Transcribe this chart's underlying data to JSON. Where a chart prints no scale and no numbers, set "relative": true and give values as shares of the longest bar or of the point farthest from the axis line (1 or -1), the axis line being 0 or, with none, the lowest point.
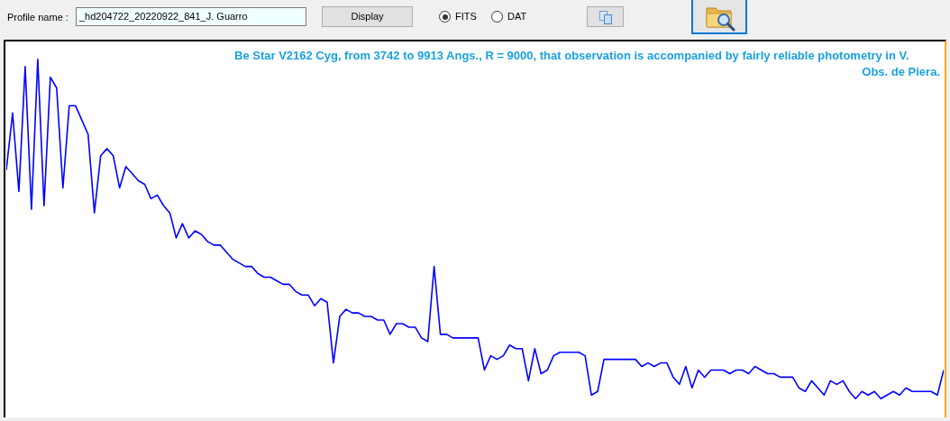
{
  "chart_data": {
    "type": "line",
    "title": "Be Star V2162 Cyg,  from 3742 to 9913 Angs., R = 9000, that observation is accompanied by fairly reliable photometry in V.",
    "annotations": [
      "Obs. de Piera.",
      "Profile name :",
      "_hd204722_20220922_841_J. Guarro",
      "Display",
      "FITS",
      "DAT"
    ],
    "categories": [
      null,
      null,
      null,
      null,
      null,
      null,
      null,
      null,
      null,
      null,
      null,
      null,
      null,
      null,
      null,
      null,
      null,
      null,
      null,
      null,
      null,
      null,
      null,
      null,
      null,
      null,
      null,
      null,
      null,
      null,
      null,
      null,
      null,
      null,
      null,
      null,
      null,
      null,
      null,
      null,
      null,
      null,
      null,
      null,
      null,
      null,
      null,
      null,
      null,
      null,
      null,
      null,
      null,
      null,
      null,
      null,
      null,
      null,
      null,
      null,
      null,
      null,
      null,
      null,
      null,
      null,
      null,
      null,
      null,
      null,
      null,
      null,
      null,
      null,
      null,
      null,
      null,
      null,
      null,
      null,
      null,
      null,
      null,
      null,
      null,
      null,
      null,
      null,
      null,
      null,
      null,
      null,
      null,
      null,
      null,
      null,
      null,
      null,
      null,
      null,
      null,
      null,
      null,
      null,
      null,
      null,
      null,
      null,
      null,
      null,
      null,
      null,
      null,
      null,
      null,
      null,
      null,
      null,
      null,
      null,
      null,
      null,
      null,
      null,
      null,
      null,
      null,
      null,
      null,
      null,
      null,
      null,
      null,
      null,
      null,
      null,
      null,
      null,
      null,
      null,
      null,
      null,
      null,
      null,
      null,
      null,
      null,
      null,
      null,
      null
    ],
    "values": [
      0.69,
      0.85,
      0.63,
      0.98,
      0.58,
      1.0,
      0.59,
      0.95,
      0.92,
      0.64,
      0.87,
      0.87,
      0.83,
      0.79,
      0.57,
      0.73,
      0.75,
      0.73,
      0.64,
      0.7,
      0.68,
      0.66,
      0.65,
      0.61,
      0.62,
      0.59,
      0.57,
      0.5,
      0.54,
      0.5,
      0.52,
      0.51,
      0.49,
      0.48,
      0.48,
      0.46,
      0.44,
      0.43,
      0.42,
      0.42,
      0.4,
      0.39,
      0.39,
      0.38,
      0.37,
      0.37,
      0.35,
      0.34,
      0.34,
      0.31,
      0.33,
      0.32,
      0.15,
      0.28,
      0.3,
      0.29,
      0.29,
      0.28,
      0.28,
      0.27,
      0.27,
      0.23,
      0.26,
      0.26,
      0.25,
      0.25,
      0.22,
      0.21,
      0.42,
      0.23,
      0.23,
      0.22,
      0.22,
      0.22,
      0.22,
      0.22,
      0.13,
      0.17,
      0.16,
      0.17,
      0.2,
      0.19,
      0.19,
      0.1,
      0.19,
      0.12,
      0.13,
      0.17,
      0.18,
      0.18,
      0.18,
      0.18,
      0.17,
      0.06,
      0.07,
      0.16,
      0.16,
      0.16,
      0.16,
      0.16,
      0.16,
      0.14,
      0.15,
      0.14,
      0.15,
      0.15,
      0.11,
      0.09,
      0.14,
      0.08,
      0.13,
      0.11,
      0.13,
      0.13,
      0.13,
      0.12,
      0.13,
      0.13,
      0.12,
      0.14,
      0.13,
      0.12,
      0.12,
      0.11,
      0.11,
      0.11,
      0.08,
      0.07,
      0.1,
      0.08,
      0.06,
      0.1,
      0.09,
      0.1,
      0.07,
      0.05,
      0.07,
      0.06,
      0.07,
      0.05,
      0.06,
      0.07,
      0.06,
      0.08,
      0.07,
      0.07,
      0.07,
      0.07,
      0.06,
      0.13
    ],
    "color": "#0000ff",
    "relative": true
  }
}
